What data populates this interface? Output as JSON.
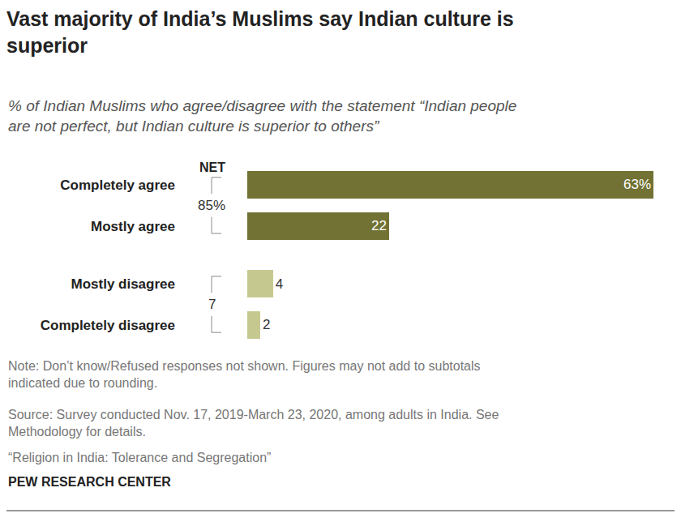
{
  "chart_data": {
    "type": "bar",
    "orientation": "horizontal",
    "title": "Vast majority of India’s Muslims say Indian culture is superior",
    "subtitle": "% of Indian Muslims who agree/disagree with the statement “Indian people are not perfect, but Indian culture is superior to others”",
    "categories": [
      "Completely agree",
      "Mostly agree",
      "Mostly disagree",
      "Completely disagree"
    ],
    "values": [
      63,
      22,
      4,
      2
    ],
    "value_labels": [
      "63%",
      "22",
      "4",
      "2"
    ],
    "colors": [
      "#717234",
      "#717234",
      "#c6c98f",
      "#c6c98f"
    ],
    "data_labels": true,
    "xlim": [
      0,
      63
    ],
    "xticks": [],
    "tick_labels": "y",
    "grid": false,
    "net_title": "NET",
    "nets": [
      {
        "label": "85%",
        "value": 85,
        "members": [
          "Completely agree",
          "Mostly agree"
        ]
      },
      {
        "label": "7",
        "value": 7,
        "members": [
          "Mostly disagree",
          "Completely disagree"
        ]
      }
    ],
    "note": "Note: Don’t know/Refused responses not shown. Figures may not add to subtotals indicated due to rounding.",
    "source": "Source: Survey conducted Nov. 17, 2019-March 23, 2020, among adults in India. See Methodology for details.",
    "report": "“Religion in India: Tolerance and Segregation”",
    "credit": "PEW RESEARCH CENTER"
  }
}
